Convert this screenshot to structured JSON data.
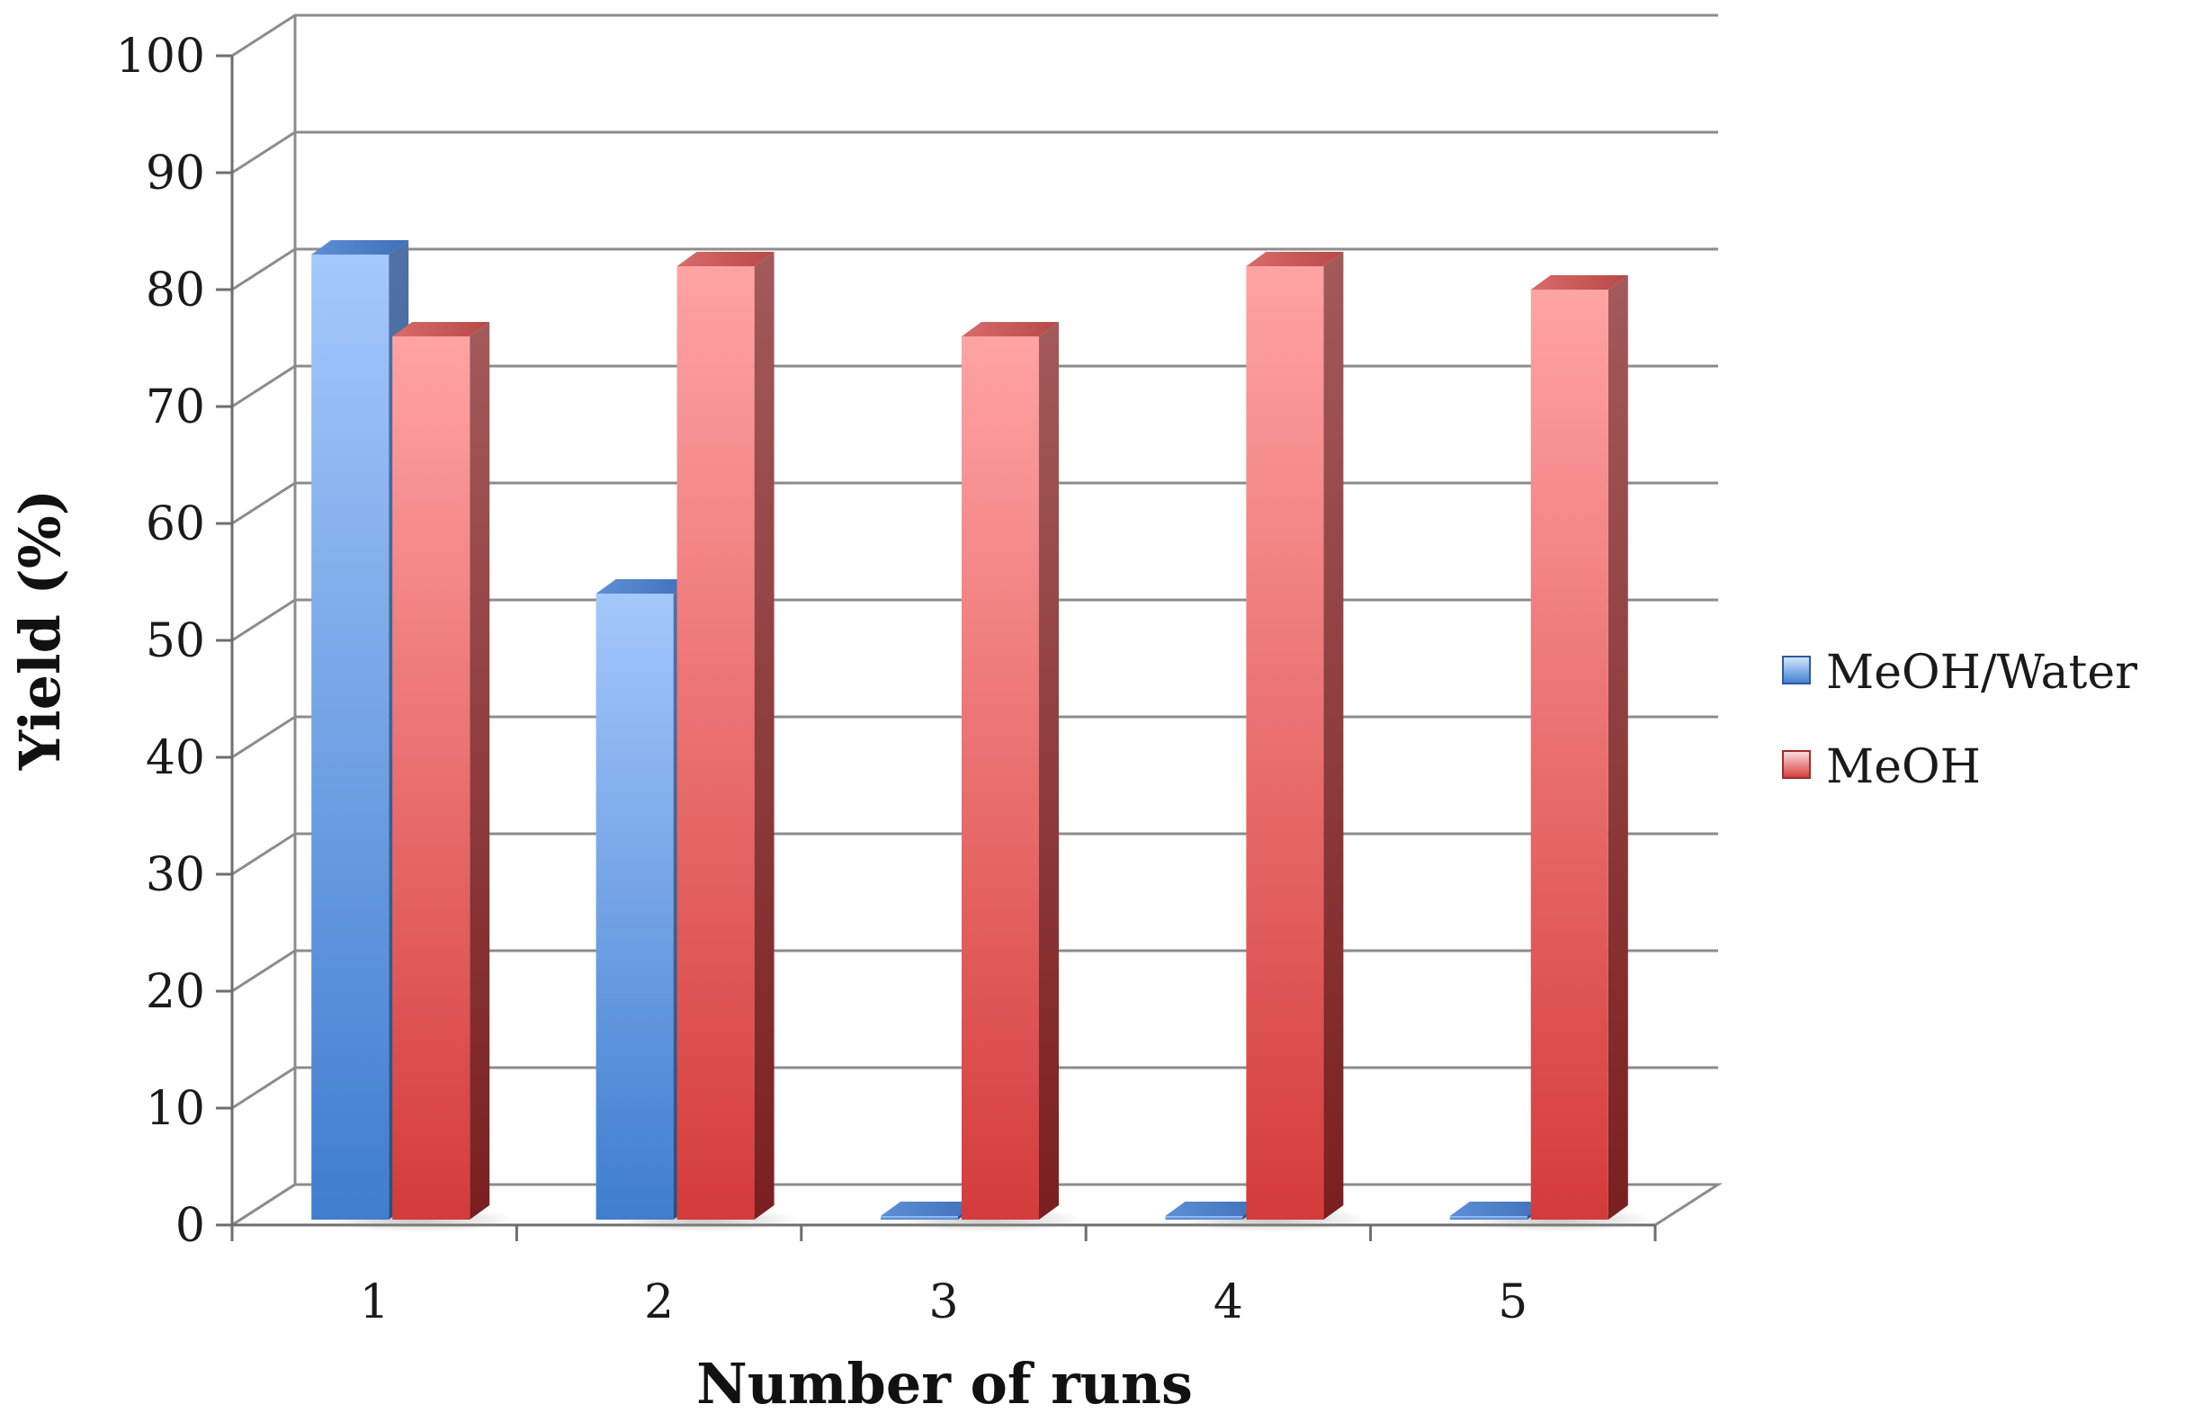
{
  "chart_data": {
    "type": "bar",
    "style": "3d-clustered-column",
    "title": "",
    "xlabel": "Number of runs",
    "ylabel": "Yield (%)",
    "categories": [
      "1",
      "2",
      "3",
      "4",
      "5"
    ],
    "ylim": [
      0,
      100
    ],
    "yticks": [
      0,
      10,
      20,
      30,
      40,
      50,
      60,
      70,
      80,
      90,
      100
    ],
    "grid": true,
    "legend_position": "right",
    "series": [
      {
        "name": "MeOH/Water",
        "values": [
          83,
          54,
          0,
          0,
          0
        ],
        "color": "#4a86d8"
      },
      {
        "name": "MeOH",
        "values": [
          76,
          82,
          76,
          82,
          80
        ],
        "color": "#e04a4a"
      }
    ]
  }
}
